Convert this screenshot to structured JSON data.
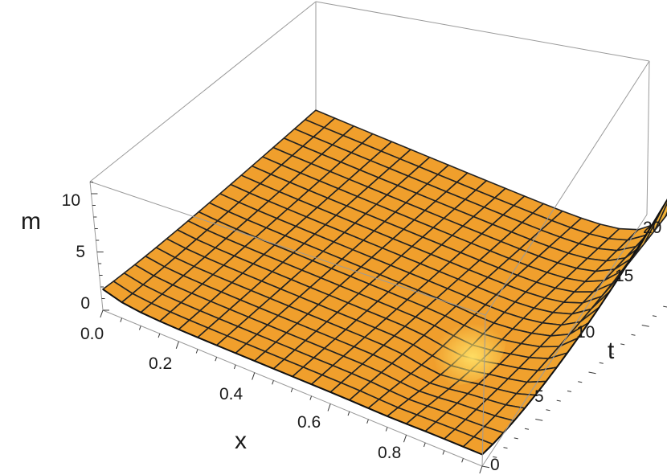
{
  "chart_data": {
    "type": "surface3d",
    "title": "",
    "xlabel": "x",
    "ylabel": "t",
    "zlabel": "m",
    "xlim": [
      0,
      1
    ],
    "ylim": [
      0,
      20
    ],
    "zlim": [
      0,
      11
    ],
    "x_ticks": [
      "0.0",
      "0.2",
      "0.4",
      "0.6",
      "0.8"
    ],
    "y_ticks": [
      "0",
      "5",
      "10",
      "15",
      "20"
    ],
    "z_ticks": [
      "0",
      "5",
      "10"
    ],
    "x_grid": [
      0.0,
      0.05,
      0.1,
      0.15,
      0.2,
      0.25,
      0.3,
      0.35,
      0.4,
      0.45,
      0.5,
      0.55,
      0.6,
      0.65,
      0.7,
      0.75,
      0.8,
      0.85,
      0.9,
      0.95,
      1.0
    ],
    "t_grid": [
      0,
      1,
      2,
      3,
      4,
      5,
      6,
      7,
      8,
      9,
      10,
      11,
      12,
      13,
      14,
      15,
      16,
      17,
      18,
      19,
      20
    ],
    "surface": {
      "description_values": "m(x,t) sampled on x_grid × t_grid",
      "flat_level": 1.0,
      "peak": {
        "x": 1.0,
        "t": 20,
        "m": 10.8
      },
      "edge_at_x0": 1.8
    },
    "surface_color": "#f2a12e",
    "mesh_color": "#222222",
    "box_color": "#9a9a9a"
  }
}
